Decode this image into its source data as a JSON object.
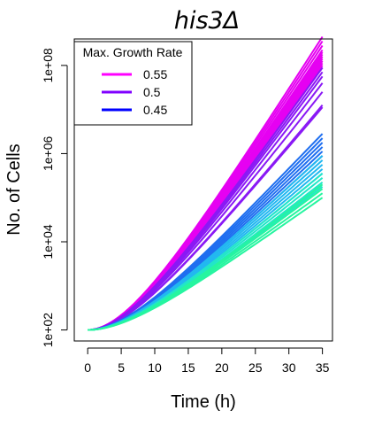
{
  "chart_data": {
    "type": "line",
    "title": "his3Δ",
    "xlabel": "Time (h)",
    "ylabel": "No. of Cells",
    "xlim": [
      -2,
      36.5
    ],
    "ylim_log10": [
      1.75,
      8.6
    ],
    "y_scale": "log10",
    "x_ticks": [
      0,
      5,
      10,
      15,
      20,
      25,
      30,
      35
    ],
    "x_tick_labels": [
      "0",
      "5",
      "10",
      "15",
      "20",
      "25",
      "30",
      "35"
    ],
    "y_ticks_log10": [
      2,
      4,
      6,
      8
    ],
    "y_tick_labels": [
      "1e+02",
      "1e+04",
      "1e+06",
      "1e+08"
    ],
    "initial_cells": 100,
    "legend": {
      "title": "Max. Growth Rate",
      "placement": "top-left",
      "entries": [
        {
          "label": "0.55",
          "color": "#ff00ff"
        },
        {
          "label": "0.5",
          "color": "#8000ff"
        },
        {
          "label": "0.45",
          "color": "#0000ff"
        }
      ]
    },
    "series_groups": [
      {
        "name": "magenta",
        "color": "#e600f2",
        "final_log10": [
          8.65,
          8.55,
          8.45,
          8.35,
          8.3,
          8.25,
          8.2,
          8.15,
          8.1,
          8.05,
          8.0,
          7.95
        ]
      },
      {
        "name": "purple",
        "color": "#8a19f5",
        "final_log10": [
          7.95,
          7.85,
          7.75,
          7.6,
          7.4,
          7.1,
          7.05
        ]
      },
      {
        "name": "blue",
        "color": "#1f6ff0",
        "final_log10": [
          6.45,
          6.35,
          6.25,
          6.15,
          6.05,
          5.95
        ]
      },
      {
        "name": "cyan",
        "color": "#22b8f0",
        "final_log10": [
          5.95,
          5.85,
          5.75,
          5.65,
          5.55
        ]
      },
      {
        "name": "aqua",
        "color": "#22e6c8",
        "final_log10": [
          5.55,
          5.45,
          5.35,
          5.25
        ]
      },
      {
        "name": "green",
        "color": "#26f5a0",
        "final_log10": [
          5.3,
          5.2,
          5.1,
          5.0
        ]
      }
    ]
  }
}
